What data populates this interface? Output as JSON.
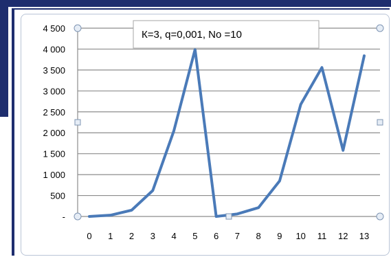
{
  "chart_data": {
    "type": "line",
    "title": "К=3,  q=0,001,  No =10",
    "xlabel": "",
    "ylabel": "",
    "x": [
      0,
      1,
      2,
      3,
      4,
      5,
      6,
      7,
      8,
      9,
      10,
      11,
      12,
      13
    ],
    "categories": [
      "0",
      "1",
      "2",
      "3",
      "4",
      "5",
      "6",
      "7",
      "8",
      "9",
      "10",
      "11",
      "12",
      "13"
    ],
    "series": [
      {
        "values": [
          0,
          30,
          150,
          620,
          2050,
          3990,
          0,
          60,
          210,
          850,
          2680,
          3560,
          1580,
          3840
        ]
      }
    ],
    "ylim": [
      0,
      4500
    ],
    "y_ticks": [
      0,
      500,
      1000,
      1500,
      2000,
      2500,
      3000,
      3500,
      4000,
      4500
    ],
    "y_tick_labels": [
      "-",
      "500",
      "1 000",
      "1 500",
      "2 000",
      "2 500",
      "3 000",
      "3 500",
      "4 000",
      "4 500"
    ],
    "grid": true,
    "line_color": "#4a7ab8",
    "grid_color": "#8c8c8c"
  }
}
